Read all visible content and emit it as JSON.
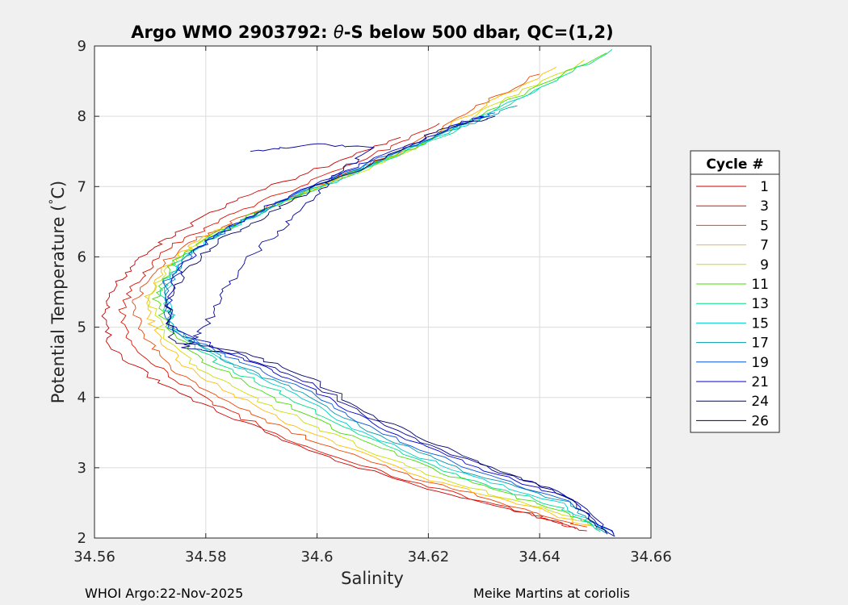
{
  "chart_data": {
    "type": "line",
    "title_prefix": "Argo WMO 2903792: ",
    "title_symbol": "θ",
    "title_suffix": "-S below 500 dbar,  QC=(1,2)",
    "xlabel": "Salinity",
    "ylabel": "Potential Temperature (",
    "ylabel_degree": "°",
    "ylabel_suffix": "C)",
    "xlim": [
      34.56,
      34.66
    ],
    "ylim": [
      2,
      9
    ],
    "x_ticks": [
      "34.56",
      "34.58",
      "34.6",
      "34.62",
      "34.64",
      "34.66"
    ],
    "x_tick_values": [
      34.56,
      34.58,
      34.6,
      34.62,
      34.64,
      34.66
    ],
    "y_ticks": [
      "2",
      "3",
      "4",
      "5",
      "6",
      "7",
      "8",
      "9"
    ],
    "y_tick_values": [
      2,
      3,
      4,
      5,
      6,
      7,
      8,
      9
    ],
    "grid": true,
    "legend_title": "Cycle #",
    "legend_position": "outside-right",
    "series": [
      {
        "name": "1",
        "color": "#cc0000",
        "points": [
          [
            34.6485,
            2.1
          ],
          [
            34.64,
            2.3
          ],
          [
            34.62,
            2.7
          ],
          [
            34.6,
            3.2
          ],
          [
            34.585,
            3.7
          ],
          [
            34.572,
            4.2
          ],
          [
            34.563,
            4.7
          ],
          [
            34.562,
            5.2
          ],
          [
            34.564,
            5.6
          ],
          [
            34.568,
            6.0
          ],
          [
            34.575,
            6.35
          ],
          [
            34.585,
            6.8
          ],
          [
            34.6,
            7.25
          ],
          [
            34.615,
            7.7
          ]
        ]
      },
      {
        "name": "3",
        "color": "#dd1100",
        "points": [
          [
            34.647,
            2.12
          ],
          [
            34.638,
            2.35
          ],
          [
            34.618,
            2.78
          ],
          [
            34.598,
            3.3
          ],
          [
            34.584,
            3.8
          ],
          [
            34.574,
            4.3
          ],
          [
            34.566,
            4.8
          ],
          [
            34.565,
            5.25
          ],
          [
            34.568,
            5.7
          ],
          [
            34.573,
            6.1
          ],
          [
            34.582,
            6.5
          ],
          [
            34.595,
            6.95
          ],
          [
            34.61,
            7.45
          ],
          [
            34.622,
            7.9
          ]
        ]
      },
      {
        "name": "5",
        "color": "#ee4400",
        "points": [
          [
            34.648,
            2.15
          ],
          [
            34.639,
            2.38
          ],
          [
            34.62,
            2.8
          ],
          [
            34.6,
            3.35
          ],
          [
            34.586,
            3.85
          ],
          [
            34.575,
            4.35
          ],
          [
            34.569,
            4.85
          ],
          [
            34.567,
            5.3
          ],
          [
            34.57,
            5.75
          ],
          [
            34.576,
            6.15
          ],
          [
            34.586,
            6.55
          ],
          [
            34.6,
            7.0
          ],
          [
            34.615,
            7.5
          ],
          [
            34.628,
            8.1
          ],
          [
            34.64,
            8.6
          ]
        ]
      },
      {
        "name": "7",
        "color": "#ffbb00",
        "points": [
          [
            34.649,
            2.16
          ],
          [
            34.64,
            2.4
          ],
          [
            34.621,
            2.82
          ],
          [
            34.602,
            3.38
          ],
          [
            34.588,
            3.9
          ],
          [
            34.577,
            4.4
          ],
          [
            34.571,
            4.9
          ],
          [
            34.569,
            5.35
          ],
          [
            34.572,
            5.8
          ],
          [
            34.578,
            6.2
          ],
          [
            34.588,
            6.6
          ],
          [
            34.602,
            7.05
          ],
          [
            34.617,
            7.55
          ],
          [
            34.63,
            8.15
          ],
          [
            34.643,
            8.7
          ]
        ]
      },
      {
        "name": "9",
        "color": "#ccdd00",
        "points": [
          [
            34.65,
            2.18
          ],
          [
            34.641,
            2.42
          ],
          [
            34.622,
            2.85
          ],
          [
            34.604,
            3.42
          ],
          [
            34.59,
            3.95
          ],
          [
            34.578,
            4.45
          ],
          [
            34.572,
            4.95
          ],
          [
            34.57,
            5.4
          ],
          [
            34.573,
            5.85
          ],
          [
            34.58,
            6.25
          ],
          [
            34.59,
            6.65
          ],
          [
            34.604,
            7.1
          ],
          [
            34.619,
            7.6
          ],
          [
            34.633,
            8.2
          ],
          [
            34.648,
            8.8
          ]
        ]
      },
      {
        "name": "11",
        "color": "#44dd00",
        "points": [
          [
            34.65,
            2.2
          ],
          [
            34.642,
            2.44
          ],
          [
            34.624,
            2.88
          ],
          [
            34.606,
            3.45
          ],
          [
            34.592,
            4.0
          ],
          [
            34.58,
            4.5
          ],
          [
            34.573,
            5.0
          ],
          [
            34.571,
            5.45
          ],
          [
            34.574,
            5.9
          ],
          [
            34.581,
            6.3
          ],
          [
            34.591,
            6.7
          ],
          [
            34.605,
            7.15
          ],
          [
            34.62,
            7.65
          ],
          [
            34.635,
            8.25
          ],
          [
            34.652,
            8.9
          ]
        ]
      },
      {
        "name": "13",
        "color": "#00dd88",
        "points": [
          [
            34.651,
            2.1
          ],
          [
            34.643,
            2.46
          ],
          [
            34.625,
            2.9
          ],
          [
            34.607,
            3.48
          ],
          [
            34.594,
            4.05
          ],
          [
            34.582,
            4.5
          ],
          [
            34.574,
            5.0
          ],
          [
            34.572,
            5.5
          ],
          [
            34.575,
            5.95
          ],
          [
            34.583,
            6.35
          ],
          [
            34.593,
            6.75
          ],
          [
            34.607,
            7.2
          ],
          [
            34.622,
            7.7
          ],
          [
            34.638,
            8.3
          ],
          [
            34.653,
            8.95
          ]
        ]
      },
      {
        "name": "15",
        "color": "#00cccc",
        "points": [
          [
            34.652,
            2.08
          ],
          [
            34.644,
            2.48
          ],
          [
            34.626,
            2.92
          ],
          [
            34.608,
            3.5
          ],
          [
            34.595,
            4.1
          ],
          [
            34.583,
            4.52
          ],
          [
            34.574,
            5.0
          ],
          [
            34.573,
            5.55
          ],
          [
            34.576,
            6.0
          ],
          [
            34.584,
            6.4
          ],
          [
            34.594,
            6.8
          ],
          [
            34.608,
            7.25
          ],
          [
            34.623,
            7.75
          ],
          [
            34.64,
            8.4
          ]
        ]
      },
      {
        "name": "17",
        "color": "#0099aa",
        "points": [
          [
            34.652,
            2.06
          ],
          [
            34.645,
            2.5
          ],
          [
            34.627,
            2.95
          ],
          [
            34.609,
            3.52
          ],
          [
            34.596,
            4.12
          ],
          [
            34.583,
            4.55
          ],
          [
            34.574,
            5.0
          ],
          [
            34.573,
            5.6
          ],
          [
            34.577,
            6.05
          ],
          [
            34.585,
            6.45
          ],
          [
            34.595,
            6.85
          ],
          [
            34.609,
            7.3
          ],
          [
            34.624,
            7.8
          ],
          [
            34.636,
            8.15
          ]
        ]
      },
      {
        "name": "19",
        "color": "#0055dd",
        "points": [
          [
            34.653,
            2.05
          ],
          [
            34.645,
            2.52
          ],
          [
            34.628,
            2.97
          ],
          [
            34.61,
            3.55
          ],
          [
            34.597,
            4.15
          ],
          [
            34.584,
            4.58
          ],
          [
            34.573,
            5.0
          ],
          [
            34.573,
            5.65
          ],
          [
            34.578,
            6.1
          ],
          [
            34.586,
            6.5
          ],
          [
            34.596,
            6.9
          ],
          [
            34.61,
            7.35
          ],
          [
            34.625,
            7.85
          ],
          [
            34.632,
            8.05
          ]
        ]
      },
      {
        "name": "21",
        "color": "#0000cc",
        "points": [
          [
            34.653,
            2.04
          ],
          [
            34.646,
            2.55
          ],
          [
            34.629,
            3.0
          ],
          [
            34.611,
            3.58
          ],
          [
            34.598,
            4.18
          ],
          [
            34.585,
            4.6
          ],
          [
            34.573,
            5.05
          ],
          [
            34.574,
            5.7
          ],
          [
            34.579,
            6.15
          ],
          [
            34.587,
            6.55
          ],
          [
            34.597,
            6.95
          ],
          [
            34.611,
            7.4
          ],
          [
            34.626,
            7.9
          ],
          [
            34.63,
            8.0
          ]
        ]
      },
      {
        "name": "24",
        "color": "#000099",
        "points": [
          [
            34.653,
            2.03
          ],
          [
            34.646,
            2.57
          ],
          [
            34.63,
            3.02
          ],
          [
            34.612,
            3.6
          ],
          [
            34.599,
            4.2
          ],
          [
            34.586,
            4.62
          ],
          [
            34.576,
            4.7
          ],
          [
            34.58,
            5.0
          ],
          [
            34.583,
            5.5
          ],
          [
            34.588,
            6.0
          ],
          [
            34.595,
            6.5
          ],
          [
            34.6,
            6.9
          ],
          [
            34.604,
            7.2
          ],
          [
            34.61,
            7.55
          ],
          [
            34.6,
            7.6
          ],
          [
            34.588,
            7.5
          ]
        ]
      },
      {
        "name": "26",
        "color": "#000066",
        "points": [
          [
            34.652,
            2.05
          ],
          [
            34.645,
            2.6
          ],
          [
            34.63,
            3.05
          ],
          [
            34.613,
            3.62
          ],
          [
            34.6,
            4.22
          ],
          [
            34.587,
            4.64
          ],
          [
            34.574,
            4.8
          ],
          [
            34.573,
            5.3
          ],
          [
            34.576,
            5.8
          ],
          [
            34.582,
            6.2
          ],
          [
            34.591,
            6.6
          ],
          [
            34.6,
            7.0
          ],
          [
            34.612,
            7.4
          ],
          [
            34.622,
            7.8
          ],
          [
            34.632,
            8.0
          ]
        ]
      }
    ]
  },
  "footer": {
    "left": "WHOI Argo:22-Nov-2025",
    "right": "Meike Martins at coriolis"
  }
}
